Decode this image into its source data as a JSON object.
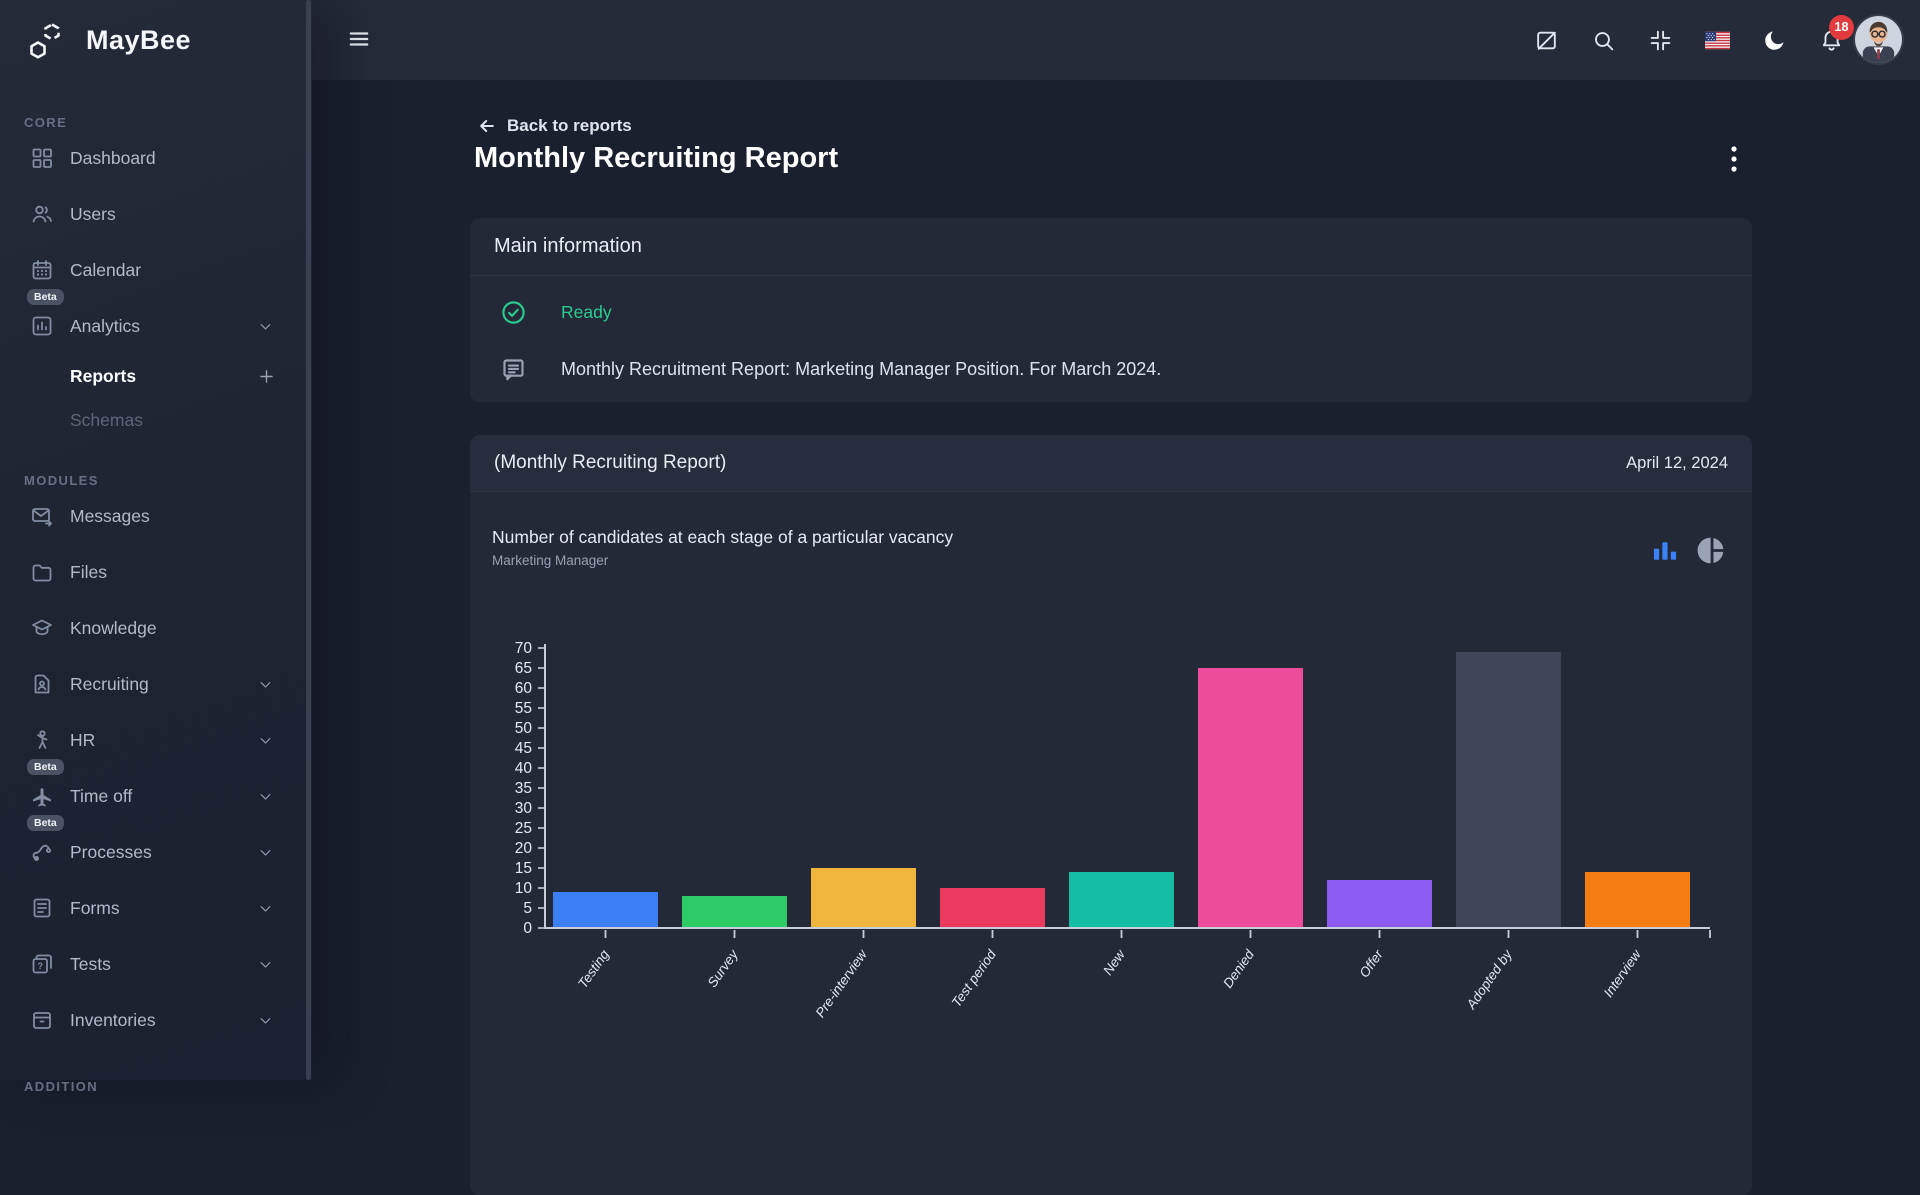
{
  "brand": {
    "name": "MayBee"
  },
  "topbar": {
    "notifications_badge": "18",
    "actions": [
      {
        "id": "board-disabled"
      },
      {
        "id": "search"
      },
      {
        "id": "compress"
      },
      {
        "id": "language-flag-us"
      },
      {
        "id": "dark-mode-moon"
      },
      {
        "id": "notifications-bell",
        "badge": "18"
      }
    ]
  },
  "sidebar": {
    "sections": [
      {
        "label": "CORE",
        "items": [
          {
            "id": "dashboard",
            "label": "Dashboard",
            "icon": "dashboard"
          },
          {
            "id": "users",
            "label": "Users",
            "icon": "users"
          },
          {
            "id": "calendar",
            "label": "Calendar",
            "icon": "calendar"
          },
          {
            "id": "analytics",
            "label": "Analytics",
            "icon": "analytics",
            "badge": "Beta",
            "chevron": true
          },
          {
            "id": "reports",
            "label": "Reports",
            "sub": true,
            "active": true,
            "plus": true
          },
          {
            "id": "schemas",
            "label": "Schemas",
            "sub": true
          }
        ]
      },
      {
        "label": "MODULES",
        "items": [
          {
            "id": "messages",
            "label": "Messages",
            "icon": "messages"
          },
          {
            "id": "files",
            "label": "Files",
            "icon": "files"
          },
          {
            "id": "knowledge",
            "label": "Knowledge",
            "icon": "knowledge"
          },
          {
            "id": "recruiting",
            "label": "Recruiting",
            "icon": "recruiting",
            "chevron": true
          },
          {
            "id": "hr",
            "label": "HR",
            "icon": "hr",
            "chevron": true
          },
          {
            "id": "timeoff",
            "label": "Time off",
            "icon": "timeoff",
            "badge": "Beta",
            "chevron": true
          },
          {
            "id": "processes",
            "label": "Processes",
            "icon": "processes",
            "badge": "Beta",
            "chevron": true
          },
          {
            "id": "forms",
            "label": "Forms",
            "icon": "forms",
            "chevron": true
          },
          {
            "id": "tests",
            "label": "Tests",
            "icon": "tests",
            "chevron": true
          },
          {
            "id": "inventories",
            "label": "Inventories",
            "icon": "inventories",
            "chevron": true
          }
        ]
      },
      {
        "label": "ADDITION",
        "items": []
      }
    ]
  },
  "page": {
    "back_link": "Back to reports",
    "title": "Monthly Recruiting Report",
    "main_info": {
      "header": "Main information",
      "status": "Ready",
      "description": "Monthly Recruitment Report: Marketing Manager Position. For March 2024."
    },
    "report_card": {
      "header": "(Monthly Recruiting Report)",
      "date": "April 12, 2024"
    }
  },
  "chart_data": {
    "type": "bar",
    "title": "Number of candidates at each stage of a particular vacancy",
    "subtitle": "Marketing Manager",
    "categories": [
      "Testing",
      "Survey",
      "Pre-interview",
      "Test period",
      "New",
      "Denied",
      "Offer",
      "Adopted by",
      "Interview"
    ],
    "values": [
      9,
      8,
      15,
      10,
      14,
      65,
      12,
      69,
      14
    ],
    "colors": [
      "#3d7ef5",
      "#2dcb66",
      "#efb53d",
      "#ea3a60",
      "#16bda5",
      "#ed4b9b",
      "#8d5bf2",
      "#3d4557",
      "#f67d13"
    ],
    "ylim": [
      0,
      70
    ],
    "ytick_step": 5,
    "grid": false,
    "legend": "none",
    "axis_color": "#c6ccd8",
    "label_color": "#e4e9f1",
    "view_toggles": {
      "options": [
        "bar",
        "pie"
      ],
      "active": "bar",
      "active_color": "#3b82f6",
      "inactive_color": "#9aa3b4"
    }
  }
}
